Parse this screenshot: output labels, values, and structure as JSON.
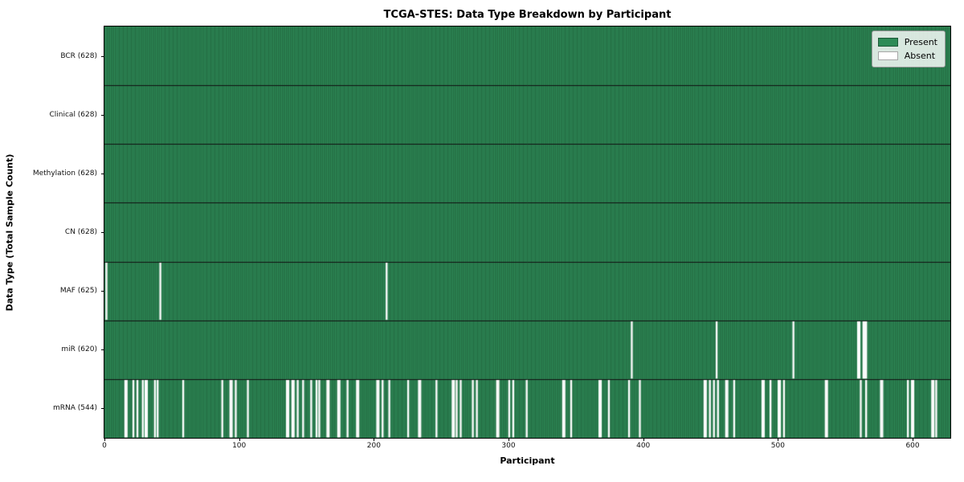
{
  "chart_data": {
    "type": "heatmap",
    "title": "TCGA-STES: Data Type Breakdown by Participant",
    "xlabel": "Participant",
    "ylabel": "Data Type (Total Sample Count)",
    "n_participants": 628,
    "xticks": [
      0,
      100,
      200,
      300,
      400,
      500,
      600
    ],
    "xlim": [
      0,
      628
    ],
    "grid": false,
    "legend_position": "upper right",
    "legend": [
      {
        "name": "present-swatch",
        "label": "Present",
        "color": "#2e8b57"
      },
      {
        "name": "absent-swatch",
        "label": "Absent",
        "color": "#ffffff"
      }
    ],
    "colors": {
      "present": "#2e8b57",
      "absent": "#fbfbfb",
      "bar_edge": "rgba(0,0,0,0.38)",
      "row_separator": "#111111",
      "plot_border": "#000000"
    },
    "rows": [
      {
        "label": "BCR (628)",
        "data_type": "BCR",
        "total_samples": 628,
        "absent_count": 0,
        "absent": []
      },
      {
        "label": "Clinical (628)",
        "data_type": "Clinical",
        "total_samples": 628,
        "absent_count": 0,
        "absent": []
      },
      {
        "label": "Methylation (628)",
        "data_type": "Methylation",
        "total_samples": 628,
        "absent_count": 0,
        "absent": []
      },
      {
        "label": "CN (628)",
        "data_type": "CN",
        "total_samples": 628,
        "absent_count": 0,
        "absent": []
      },
      {
        "label": "MAF (625)",
        "data_type": "MAF",
        "total_samples": 625,
        "absent_count": 3,
        "absent": [
          1,
          41,
          209
        ]
      },
      {
        "label": "miR (620)",
        "data_type": "miR",
        "total_samples": 620,
        "absent_count": 8,
        "absent": [
          391,
          454,
          511,
          559,
          560,
          563,
          564,
          565
        ]
      },
      {
        "label": "mRNA (544)",
        "data_type": "mRNA",
        "total_samples": 544,
        "absent_count": 84,
        "absent": [
          15,
          16,
          21,
          24,
          28,
          30,
          31,
          37,
          39,
          58,
          87,
          93,
          94,
          97,
          106,
          135,
          136,
          139,
          140,
          143,
          147,
          153,
          157,
          159,
          165,
          166,
          173,
          174,
          180,
          187,
          188,
          202,
          203,
          206,
          211,
          225,
          233,
          234,
          246,
          258,
          259,
          261,
          264,
          273,
          276,
          291,
          292,
          300,
          303,
          313,
          340,
          341,
          346,
          367,
          368,
          374,
          389,
          397,
          445,
          446,
          449,
          452,
          455,
          461,
          462,
          467,
          488,
          489,
          494,
          500,
          501,
          504,
          535,
          536,
          561,
          565,
          576,
          577,
          596,
          599,
          600,
          614,
          615,
          617
        ]
      }
    ]
  }
}
